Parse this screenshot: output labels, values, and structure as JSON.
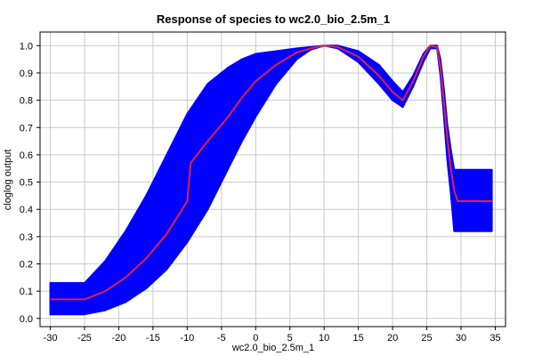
{
  "chart_data": {
    "type": "line",
    "title": "Response of species to wc2.0_bio_2.5m_1",
    "xlabel": "wc2.0_bio_2.5m_1",
    "ylabel": "cloglog output",
    "xlim": [
      -31.5,
      36.5
    ],
    "ylim": [
      -0.03,
      1.05
    ],
    "x_ticks": [
      -30,
      -25,
      -20,
      -15,
      -10,
      -5,
      0,
      5,
      10,
      15,
      20,
      25,
      30,
      35
    ],
    "y_ticks": [
      0.0,
      0.1,
      0.2,
      0.3,
      0.4,
      0.5,
      0.6,
      0.7,
      0.8,
      0.9,
      1.0
    ],
    "grid": true,
    "colors": {
      "band": "#0000ff",
      "line": "#e0204a",
      "grid": "#c8c8c8"
    },
    "series": [
      {
        "role": "mean",
        "x": [
          -30,
          -25,
          -22,
          -19,
          -16,
          -13,
          -10,
          -9.5,
          -7,
          -4,
          -2,
          0,
          3,
          6,
          8,
          10,
          12,
          15,
          18,
          20,
          21.5,
          23,
          24.5,
          25.5,
          26.5,
          27,
          27.5,
          28,
          28.5,
          29,
          29.5,
          34.5
        ],
        "y": [
          0.07,
          0.07,
          0.1,
          0.15,
          0.22,
          0.31,
          0.43,
          0.57,
          0.65,
          0.74,
          0.81,
          0.87,
          0.93,
          0.975,
          0.99,
          1.0,
          0.995,
          0.96,
          0.89,
          0.83,
          0.8,
          0.87,
          0.96,
          1.0,
          0.995,
          0.92,
          0.79,
          0.66,
          0.55,
          0.47,
          0.43,
          0.43
        ]
      },
      {
        "role": "upper",
        "x": [
          -30,
          -25,
          -22,
          -19,
          -16,
          -13,
          -10,
          -7,
          -4,
          -2,
          0,
          3,
          6,
          8,
          10,
          12,
          15,
          18,
          20,
          21.5,
          23,
          24.5,
          25.5,
          26.5,
          27,
          27.5,
          28,
          28.5,
          29,
          34.5
        ],
        "y": [
          0.13,
          0.13,
          0.21,
          0.32,
          0.45,
          0.6,
          0.75,
          0.86,
          0.92,
          0.95,
          0.97,
          0.98,
          0.99,
          0.995,
          1.0,
          1.0,
          0.98,
          0.93,
          0.87,
          0.83,
          0.89,
          0.97,
          1.0,
          1.0,
          0.95,
          0.84,
          0.71,
          0.62,
          0.545,
          0.545
        ]
      },
      {
        "role": "lower",
        "x": [
          -30,
          -25,
          -22,
          -19,
          -16,
          -13,
          -10,
          -7,
          -4,
          -2,
          0,
          3,
          6,
          8,
          10,
          12,
          15,
          18,
          20,
          21.5,
          23,
          24.5,
          25.5,
          26.5,
          27,
          27.5,
          28,
          28.5,
          29,
          34.5
        ],
        "y": [
          0.015,
          0.015,
          0.03,
          0.06,
          0.11,
          0.18,
          0.28,
          0.4,
          0.55,
          0.65,
          0.74,
          0.86,
          0.95,
          0.985,
          1.0,
          0.99,
          0.94,
          0.86,
          0.8,
          0.775,
          0.85,
          0.94,
          0.99,
          0.99,
          0.89,
          0.74,
          0.58,
          0.46,
          0.32,
          0.32
        ]
      }
    ]
  }
}
